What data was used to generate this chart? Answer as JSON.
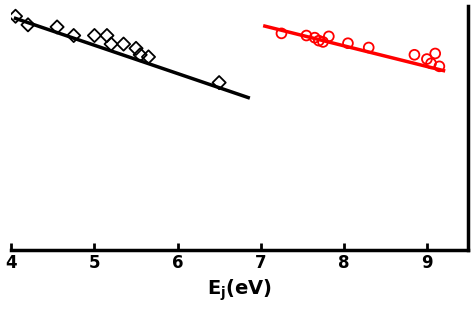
{
  "xlabel": "E$_j$(eV)",
  "xlim": [
    4.0,
    9.5
  ],
  "ylim": [
    -4.5,
    1.2
  ],
  "xticks": [
    4,
    5,
    6,
    7,
    8,
    9
  ],
  "background_color": "#ffffff",
  "fe1_scatter_x": [
    4.05,
    4.2,
    4.55,
    4.75,
    5.0,
    5.15,
    5.2,
    5.35,
    5.5,
    5.55,
    5.65,
    6.5
  ],
  "fe1_scatter_y": [
    0.95,
    0.75,
    0.7,
    0.5,
    0.5,
    0.5,
    0.3,
    0.3,
    0.2,
    0.05,
    0.0,
    -0.6
  ],
  "fe1_line_x": [
    4.05,
    6.85
  ],
  "fe1_line_y": [
    0.9,
    -0.95
  ],
  "fe2_scatter_x": [
    7.25,
    7.55,
    7.65,
    7.7,
    7.75,
    7.82,
    8.05,
    8.3,
    8.85,
    9.0,
    9.05,
    9.1,
    9.15
  ],
  "fe2_scatter_y": [
    0.55,
    0.5,
    0.45,
    0.38,
    0.35,
    0.48,
    0.32,
    0.22,
    0.05,
    -0.05,
    -0.15,
    0.08,
    -0.22
  ],
  "fe2_line_x": [
    7.05,
    9.2
  ],
  "fe2_line_y": [
    0.72,
    -0.32
  ],
  "fe1_color": "#000000",
  "fe2_color": "#ff0000",
  "fe1_marker_size": 45,
  "fe2_marker_size": 50,
  "line_width": 2.5,
  "spine_linewidth": 2.5,
  "tick_fontsize": 12,
  "xlabel_fontsize": 14
}
